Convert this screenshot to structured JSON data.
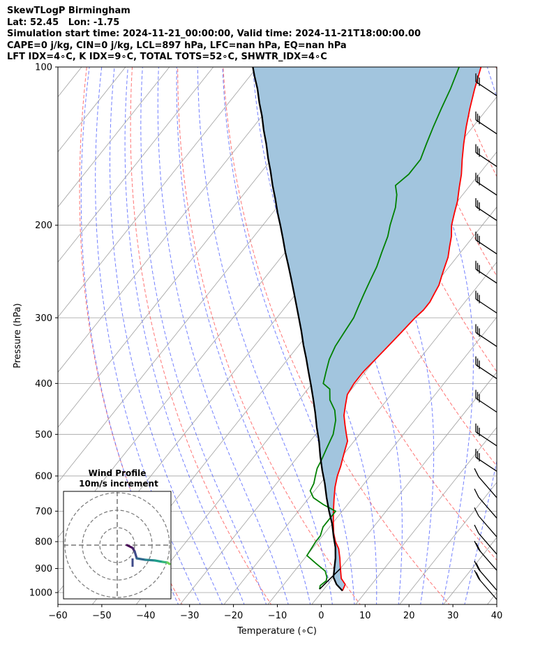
{
  "header": {
    "line1": "SkewTLogP Birmingham",
    "line2": "Lat: 52.45   Lon: -1.75",
    "line3": "Simulation start time: 2024-11-21_00:00:00, Valid time: 2024-11-21T18:00:00.00",
    "line4": "CAPE=0 j/kg, CIN=0 j/kg, LCL=897 hPa, LFC=nan hPa, EQ=nan hPa",
    "line5": "LFT IDX=4∘C, K IDX=9∘C, TOTAL TOTS=52∘C, SHWTR_IDX=4∘C"
  },
  "chart_data": {
    "type": "line",
    "subtype": "skew-T log-p diagram",
    "xlabel": "Temperature (∘C)",
    "ylabel": "Pressure (hPa)",
    "xlim": [
      -60,
      40
    ],
    "ylim": [
      1050,
      100
    ],
    "yscale": "log",
    "x_ticks": [
      "−60",
      "−50",
      "−40",
      "−30",
      "−20",
      "−10",
      "0",
      "10",
      "20",
      "30",
      "40"
    ],
    "y_ticks": [
      "100",
      "200",
      "300",
      "400",
      "500",
      "600",
      "700",
      "800",
      "900",
      "1000"
    ],
    "colors": {
      "temperature": "#ff0000",
      "dewpoint": "#008000",
      "parcel": "#000000",
      "shading": "#a2c5de",
      "dry_adiabats": "#ff5050",
      "moist_adiabats": "#4455ff",
      "isotherms": "#a0a0a0"
    },
    "series": [
      {
        "points": [
          [
            4.5,
            992
          ],
          [
            4,
            965
          ],
          [
            2,
            940
          ],
          [
            0,
            900
          ],
          [
            -2,
            860
          ],
          [
            -4,
            825
          ],
          [
            -6,
            800
          ],
          [
            -8,
            770
          ],
          [
            -10,
            735
          ],
          [
            -12,
            700
          ],
          [
            -14,
            665
          ],
          [
            -16,
            630
          ],
          [
            -17.5,
            600
          ],
          [
            -18.5,
            575
          ],
          [
            -19.5,
            555
          ],
          [
            -20.5,
            535
          ],
          [
            -21.5,
            515
          ],
          [
            -23,
            500
          ],
          [
            -25,
            480
          ],
          [
            -27,
            460
          ],
          [
            -28.5,
            440
          ],
          [
            -30,
            420
          ],
          [
            -30.5,
            400
          ],
          [
            -30.5,
            380
          ],
          [
            -30,
            360
          ],
          [
            -29.5,
            340
          ],
          [
            -29,
            320
          ],
          [
            -28.5,
            300
          ],
          [
            -28,
            290
          ],
          [
            -28,
            280
          ],
          [
            -28.5,
            270
          ],
          [
            -29,
            260
          ],
          [
            -30,
            250
          ],
          [
            -31,
            240
          ],
          [
            -32,
            230
          ],
          [
            -33.5,
            220
          ],
          [
            -35,
            210
          ],
          [
            -37,
            200
          ],
          [
            -38.5,
            190
          ],
          [
            -40,
            180
          ],
          [
            -42,
            170
          ],
          [
            -44,
            160
          ],
          [
            -46.5,
            150
          ],
          [
            -49,
            140
          ],
          [
            -51.5,
            130
          ],
          [
            -54,
            120
          ],
          [
            -56.5,
            110
          ],
          [
            -59,
            100
          ]
        ]
      },
      {
        "points": [
          [
            -1,
            985
          ],
          [
            -1.5,
            970
          ],
          [
            -1,
            950
          ],
          [
            -1.5,
            935
          ],
          [
            -3,
            910
          ],
          [
            -6.5,
            880
          ],
          [
            -10,
            850
          ],
          [
            -10.5,
            800
          ],
          [
            -10.5,
            780
          ],
          [
            -11.5,
            750
          ],
          [
            -11.5,
            700
          ],
          [
            -15.5,
            680
          ],
          [
            -19,
            660
          ],
          [
            -21,
            640
          ],
          [
            -21.5,
            620
          ],
          [
            -22.5,
            600
          ],
          [
            -23.5,
            580
          ],
          [
            -24,
            560
          ],
          [
            -25,
            530
          ],
          [
            -26,
            500
          ],
          [
            -28,
            470
          ],
          [
            -30,
            450
          ],
          [
            -33,
            430
          ],
          [
            -35,
            410
          ],
          [
            -37.5,
            400
          ],
          [
            -39,
            380
          ],
          [
            -40.5,
            360
          ],
          [
            -41.5,
            340
          ],
          [
            -42,
            320
          ],
          [
            -42.5,
            300
          ],
          [
            -43.5,
            285
          ],
          [
            -44.5,
            270
          ],
          [
            -45.5,
            255
          ],
          [
            -46.5,
            240
          ],
          [
            -48,
            225
          ],
          [
            -49.5,
            210
          ],
          [
            -51,
            200
          ],
          [
            -53,
            185
          ],
          [
            -55,
            175
          ],
          [
            -57,
            168
          ],
          [
            -56,
            160
          ],
          [
            -56,
            150
          ],
          [
            -57.5,
            140
          ],
          [
            -59,
            130
          ],
          [
            -60.5,
            120
          ],
          [
            -62,
            110
          ],
          [
            -64,
            100
          ]
        ]
      },
      {
        "points": [
          [
            4.5,
            992
          ],
          [
            2,
            965
          ],
          [
            0,
            935
          ],
          [
            -1.5,
            897
          ],
          [
            -3,
            860
          ],
          [
            -5,
            820
          ],
          [
            -7.5,
            780
          ],
          [
            -10,
            740
          ],
          [
            -13,
            700
          ],
          [
            -16,
            660
          ],
          [
            -19,
            620
          ],
          [
            -22,
            585
          ],
          [
            -25,
            550
          ],
          [
            -28,
            515
          ],
          [
            -31,
            485
          ],
          [
            -34,
            455
          ],
          [
            -37,
            428
          ],
          [
            -40,
            403
          ],
          [
            -43,
            380
          ],
          [
            -46,
            358
          ],
          [
            -49,
            338
          ],
          [
            -52,
            318
          ],
          [
            -55,
            300
          ],
          [
            -58,
            283
          ],
          [
            -61,
            267
          ],
          [
            -64,
            252
          ],
          [
            -67,
            238
          ],
          [
            -70,
            225
          ],
          [
            -73,
            212
          ],
          [
            -76,
            200
          ],
          [
            -79,
            189
          ],
          [
            -82,
            178
          ],
          [
            -85,
            168
          ],
          [
            -88,
            158
          ],
          [
            -91,
            149
          ],
          [
            -94,
            140
          ],
          [
            -97,
            132
          ],
          [
            -100,
            124
          ],
          [
            -103,
            117
          ],
          [
            -106,
            110
          ],
          [
            -109,
            104
          ],
          [
            -111,
            100
          ]
        ]
      }
    ],
    "wind_profile_inset": {
      "title_line1": "Wind Profile",
      "title_line2": "10m/s increment"
    }
  }
}
